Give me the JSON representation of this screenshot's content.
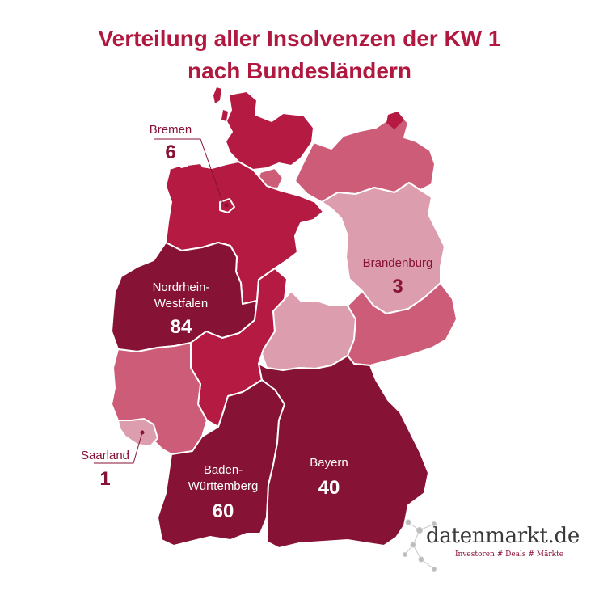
{
  "title": {
    "line1": "Verteilung aller Insolvenzen der KW 1",
    "line2": "nach Bundesländern"
  },
  "colors": {
    "title": "#b0183f",
    "darkest": "#861235",
    "dark": "#b41a42",
    "medium": "#cc5c78",
    "light": "#dc9dae",
    "no_data": "#ffffff"
  },
  "states": [
    {
      "name": "Nordrhein-Westfalen",
      "label_line1": "Nordrhein-",
      "label_line2": "Westfalen",
      "value": "84"
    },
    {
      "name": "Baden-Württemberg",
      "label_line1": "Baden-",
      "label_line2": "Württemberg",
      "value": "60"
    },
    {
      "name": "Bayern",
      "label_line1": "Bayern",
      "label_line2": "",
      "value": "40"
    },
    {
      "name": "Bremen",
      "label_line1": "Bremen",
      "label_line2": "",
      "value": "6"
    },
    {
      "name": "Brandenburg",
      "label_line1": "Brandenburg",
      "label_line2": "",
      "value": "3"
    },
    {
      "name": "Saarland",
      "label_line1": "Saarland",
      "label_line2": "",
      "value": "1"
    }
  ],
  "logo": {
    "name": "datenmarkt.de",
    "tagline": "Investoren # Deals # Märkte"
  }
}
